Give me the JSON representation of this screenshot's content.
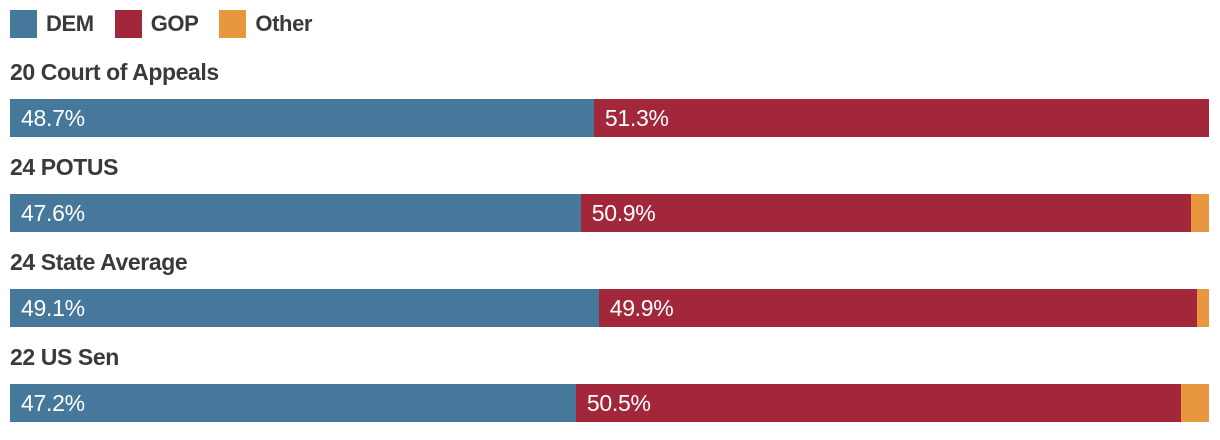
{
  "colors": {
    "dem": "#45789B",
    "gop": "#A2273A",
    "other": "#E8973E",
    "title_text": "#3A3A3A",
    "bar_label_text": "#FFFFFF",
    "background": "#FFFFFF"
  },
  "legend": {
    "items": [
      {
        "id": "dem",
        "label": "DEM",
        "color": "#45789B"
      },
      {
        "id": "gop",
        "label": "GOP",
        "color": "#A2273A"
      },
      {
        "id": "other",
        "label": "Other",
        "color": "#E8973E"
      }
    ]
  },
  "chart_data": {
    "type": "bar",
    "orientation": "horizontal",
    "stacked": true,
    "legend_position": "top",
    "xlim": [
      0,
      100
    ],
    "value_format": "percent",
    "categories": [
      "20 Court of Appeals",
      "24 POTUS",
      "24 State Average",
      "22 US Sen"
    ],
    "series": [
      {
        "name": "DEM",
        "color": "#45789B",
        "values": [
          48.7,
          47.6,
          49.1,
          47.2
        ],
        "labels": [
          "48.7%",
          "47.6%",
          "49.1%",
          "47.2%"
        ]
      },
      {
        "name": "GOP",
        "color": "#A2273A",
        "values": [
          51.3,
          50.9,
          49.9,
          50.5
        ],
        "labels": [
          "51.3%",
          "50.9%",
          "49.9%",
          "50.5%"
        ]
      },
      {
        "name": "Other",
        "color": "#E8973E",
        "values": [
          0,
          1.5,
          1.0,
          2.3
        ],
        "labels": [
          "",
          "",
          "",
          ""
        ]
      }
    ]
  }
}
